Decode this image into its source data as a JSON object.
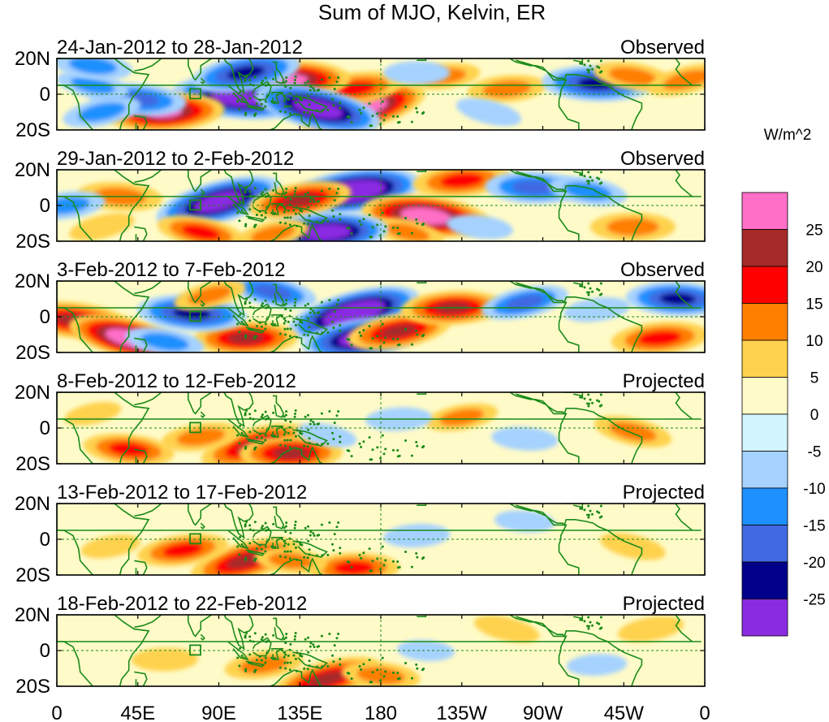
{
  "chart_data": {
    "type": "heatmap",
    "title": "Sum of MJO, Kelvin, ER",
    "units": "W/m^2",
    "x_ticks": [
      "0",
      "45E",
      "90E",
      "135E",
      "180",
      "135W",
      "90W",
      "45W",
      "0"
    ],
    "y_ticks": [
      "20N",
      "0",
      "20S"
    ],
    "lon_range": [
      0,
      360
    ],
    "lat_range": [
      -20,
      20
    ],
    "colorbar": {
      "levels": [
        "25",
        "20",
        "15",
        "10",
        "5",
        "0",
        "-5",
        "-10",
        "-15",
        "-20",
        "-25"
      ],
      "colors": [
        "#ff6ec7",
        "#a52a2a",
        "#ff0000",
        "#ff7f00",
        "#ffd24d",
        "#fffbc8",
        "#d2f5ff",
        "#a5d2ff",
        "#1e90ff",
        "#4169e1",
        "#00008b",
        "#8a2be2"
      ]
    },
    "panels": [
      {
        "date_range": "24-Jan-2012 to 28-Jan-2012",
        "status": "Observed",
        "features": [
          {
            "lon": 170,
            "lat": -8,
            "value": 28
          },
          {
            "lon": 165,
            "lat": 3,
            "value": 18
          },
          {
            "lon": 130,
            "lat": 8,
            "value": 25
          },
          {
            "lon": 100,
            "lat": -2,
            "value": -28
          },
          {
            "lon": 145,
            "lat": -8,
            "value": -28
          },
          {
            "lon": 105,
            "lat": 12,
            "value": -22
          },
          {
            "lon": 60,
            "lat": -10,
            "value": 25
          },
          {
            "lon": 45,
            "lat": -3,
            "value": -18
          },
          {
            "lon": 20,
            "lat": 5,
            "value": -10
          },
          {
            "lon": 25,
            "lat": -10,
            "value": -12
          },
          {
            "lon": 250,
            "lat": 3,
            "value": 12
          },
          {
            "lon": 300,
            "lat": 6,
            "value": -22
          },
          {
            "lon": 320,
            "lat": 10,
            "value": 12
          },
          {
            "lon": 350,
            "lat": 8,
            "value": 12
          },
          {
            "lon": 215,
            "lat": 10,
            "value": 10
          },
          {
            "lon": 200,
            "lat": 12,
            "value": -8
          },
          {
            "lon": 20,
            "lat": 16,
            "value": -12
          },
          {
            "lon": 240,
            "lat": -10,
            "value": -8
          }
        ]
      },
      {
        "date_range": "29-Jan-2012 to 2-Feb-2012",
        "status": "Observed",
        "features": [
          {
            "lon": 90,
            "lat": 2,
            "value": -28
          },
          {
            "lon": 165,
            "lat": 8,
            "value": -30
          },
          {
            "lon": 130,
            "lat": 0,
            "value": -12
          },
          {
            "lon": 205,
            "lat": -6,
            "value": 28
          },
          {
            "lon": 195,
            "lat": -15,
            "value": 10
          },
          {
            "lon": 135,
            "lat": 3,
            "value": 20
          },
          {
            "lon": 150,
            "lat": -15,
            "value": -26
          },
          {
            "lon": 35,
            "lat": 5,
            "value": 14
          },
          {
            "lon": 80,
            "lat": -15,
            "value": 15
          },
          {
            "lon": 120,
            "lat": -16,
            "value": 10
          },
          {
            "lon": 225,
            "lat": 14,
            "value": 18
          },
          {
            "lon": 265,
            "lat": 10,
            "value": -18
          },
          {
            "lon": 295,
            "lat": 8,
            "value": -12
          },
          {
            "lon": 25,
            "lat": -12,
            "value": 8
          },
          {
            "lon": 5,
            "lat": 0,
            "value": -12
          },
          {
            "lon": 320,
            "lat": -12,
            "value": 14
          },
          {
            "lon": 235,
            "lat": -12,
            "value": -8
          }
        ]
      },
      {
        "date_range": "3-Feb-2012 to 7-Feb-2012",
        "status": "Observed",
        "features": [
          {
            "lon": 165,
            "lat": 2,
            "value": -30
          },
          {
            "lon": 170,
            "lat": -12,
            "value": -26
          },
          {
            "lon": 105,
            "lat": -12,
            "value": 20
          },
          {
            "lon": 10,
            "lat": -2,
            "value": 22
          },
          {
            "lon": 40,
            "lat": -12,
            "value": 26
          },
          {
            "lon": 190,
            "lat": -8,
            "value": 20
          },
          {
            "lon": 220,
            "lat": 5,
            "value": 20
          },
          {
            "lon": 75,
            "lat": 2,
            "value": -22
          },
          {
            "lon": 120,
            "lat": 14,
            "value": -15
          },
          {
            "lon": 260,
            "lat": 8,
            "value": -15
          },
          {
            "lon": 335,
            "lat": -12,
            "value": 18
          },
          {
            "lon": 345,
            "lat": 10,
            "value": -20
          },
          {
            "lon": 60,
            "lat": -14,
            "value": -12
          },
          {
            "lon": 85,
            "lat": 12,
            "value": 10
          },
          {
            "lon": 300,
            "lat": 4,
            "value": -8
          }
        ]
      },
      {
        "date_range": "8-Feb-2012 to 12-Feb-2012",
        "status": "Projected",
        "features": [
          {
            "lon": 110,
            "lat": -10,
            "value": 22
          },
          {
            "lon": 80,
            "lat": -5,
            "value": 12
          },
          {
            "lon": 130,
            "lat": -14,
            "value": 20
          },
          {
            "lon": 40,
            "lat": -12,
            "value": 16
          },
          {
            "lon": 320,
            "lat": -2,
            "value": 12
          },
          {
            "lon": 225,
            "lat": 6,
            "value": 10
          },
          {
            "lon": 190,
            "lat": 5,
            "value": -8
          },
          {
            "lon": 260,
            "lat": -6,
            "value": -8
          },
          {
            "lon": 150,
            "lat": -4,
            "value": -6
          },
          {
            "lon": 20,
            "lat": 8,
            "value": 5
          }
        ]
      },
      {
        "date_range": "13-Feb-2012 to 17-Feb-2012",
        "status": "Projected",
        "features": [
          {
            "lon": 105,
            "lat": -12,
            "value": 23
          },
          {
            "lon": 70,
            "lat": -6,
            "value": 16
          },
          {
            "lon": 165,
            "lat": -16,
            "value": 16
          },
          {
            "lon": 130,
            "lat": -12,
            "value": 10
          },
          {
            "lon": 320,
            "lat": -4,
            "value": 8
          },
          {
            "lon": 30,
            "lat": -4,
            "value": 6
          },
          {
            "lon": 200,
            "lat": 2,
            "value": -8
          },
          {
            "lon": 260,
            "lat": 10,
            "value": -6
          }
        ]
      },
      {
        "date_range": "18-Feb-2012 to 22-Feb-2012",
        "status": "Projected",
        "features": [
          {
            "lon": 150,
            "lat": -16,
            "value": 22
          },
          {
            "lon": 115,
            "lat": -8,
            "value": 12
          },
          {
            "lon": 60,
            "lat": -5,
            "value": 8
          },
          {
            "lon": 180,
            "lat": -14,
            "value": 12
          },
          {
            "lon": 250,
            "lat": 12,
            "value": 8
          },
          {
            "lon": 330,
            "lat": 12,
            "value": 8
          },
          {
            "lon": 300,
            "lat": -8,
            "value": -6
          },
          {
            "lon": 205,
            "lat": 0,
            "value": -5
          }
        ]
      }
    ]
  }
}
